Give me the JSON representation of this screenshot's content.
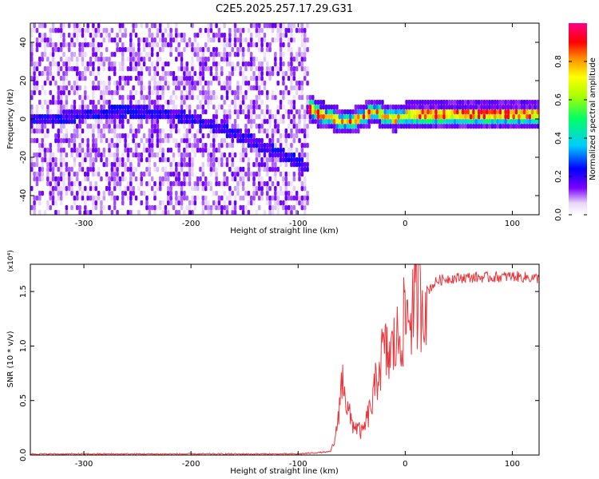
{
  "title": "C2E5.2025.257.17.29.G31",
  "chart_data": [
    {
      "type": "heatmap",
      "xlabel": "Height of straight line (km)",
      "ylabel": "Frequency (Hz)",
      "xlim": [
        -350,
        125
      ],
      "ylim": [
        -50,
        50
      ],
      "x_ticks": [
        -300,
        -200,
        -100,
        0,
        100
      ],
      "y_ticks": [
        -40,
        -20,
        0,
        20,
        40
      ],
      "colorbar": {
        "label": "Normalized spectral amplitude",
        "range": [
          0,
          1
        ],
        "ticks": [
          "0.0",
          "0.2",
          "0.4",
          "0.6",
          "0.8"
        ],
        "colormap": [
          "#ffffff",
          "#e8d8f8",
          "#7a00ff",
          "#0000ff",
          "#00ccff",
          "#00ff66",
          "#ffff00",
          "#ff8800",
          "#ff0000",
          "#ff0088"
        ]
      },
      "ridge": {
        "x": [
          -350,
          -330,
          -300,
          -280,
          -260,
          -240,
          -220,
          -200,
          -180,
          -160,
          -140,
          -120,
          -100,
          -90
        ],
        "y": [
          -2,
          -1,
          1,
          2,
          3,
          2,
          1,
          -1,
          -5,
          -9,
          -14,
          -19,
          -24,
          -27
        ]
      },
      "strong_signal": {
        "x": [
          -88,
          -80,
          -70,
          -60,
          -50,
          -40,
          -30,
          -20,
          -10,
          0,
          20,
          50,
          80,
          100,
          125
        ],
        "y": [
          4,
          1,
          0,
          -3,
          -2,
          0,
          3,
          0,
          -1,
          1,
          1,
          1,
          1,
          1,
          1
        ]
      }
    },
    {
      "type": "line",
      "xlabel": "Height of straight line (km)",
      "ylabel": "SNR (10 * v/v)",
      "y_multiplier": "(x10⁴)",
      "xlim": [
        -350,
        125
      ],
      "ylim": [
        0,
        1.75
      ],
      "x_ticks": [
        -300,
        -200,
        -100,
        0,
        100
      ],
      "y_ticks": [
        "0.0",
        "0.5",
        "1.0",
        "1.5"
      ],
      "color": "#e8383d",
      "series": [
        {
          "x": [
            -350,
            -200,
            -100,
            -70,
            -65,
            -60,
            -57,
            -55,
            -50,
            -45,
            -40,
            -35,
            -30,
            -25,
            -20,
            -15,
            -10,
            -5,
            0,
            10,
            20,
            30,
            40,
            60,
            80,
            100,
            125
          ],
          "y": [
            0.01,
            0.01,
            0.01,
            0.03,
            0.15,
            0.6,
            0.75,
            0.45,
            0.3,
            0.25,
            0.2,
            0.35,
            0.5,
            0.8,
            0.95,
            0.9,
            1.0,
            1.1,
            1.25,
            1.4,
            1.5,
            1.6,
            1.62,
            1.63,
            1.63,
            1.64,
            1.62
          ]
        }
      ]
    }
  ]
}
